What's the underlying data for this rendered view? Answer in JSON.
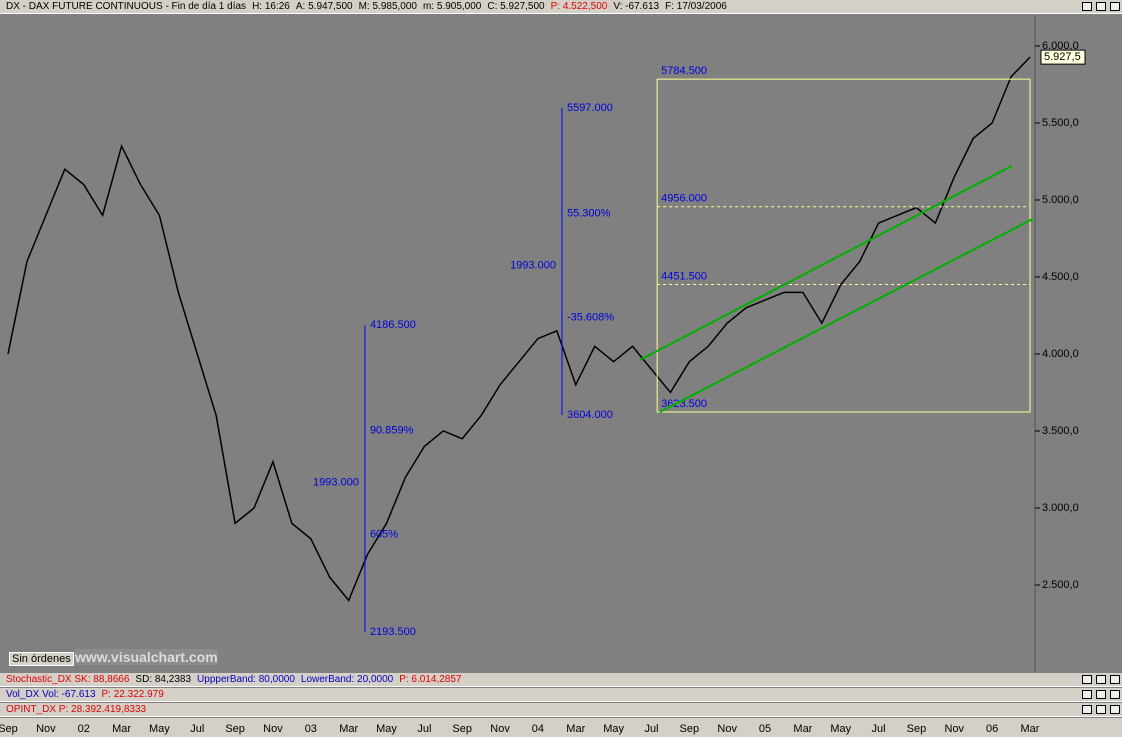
{
  "header": {
    "title": "DX - DAX FUTURE CONTINUOUS - Fin de día 1 días",
    "fields": [
      {
        "text": "H: 16:26",
        "color": "#000000"
      },
      {
        "text": "A: 5.947,500",
        "color": "#000000"
      },
      {
        "text": "M: 5.985,000",
        "color": "#000000"
      },
      {
        "text": "m: 5.905,000",
        "color": "#000000"
      },
      {
        "text": "C: 5.927,500",
        "color": "#000000"
      },
      {
        "text": "P: 4.522,500",
        "color": "#e00000"
      },
      {
        "text": "V: -67.613",
        "color": "#000000"
      },
      {
        "text": "F: 17/03/2006",
        "color": "#000000"
      }
    ]
  },
  "chart_data": {
    "type": "line",
    "categories": [
      "Sep",
      null,
      "Nov",
      null,
      "02",
      null,
      "Mar",
      null,
      "May",
      null,
      "Jul",
      null,
      "Sep",
      null,
      "Nov",
      null,
      "03",
      null,
      "Mar",
      null,
      "May",
      null,
      "Jul",
      null,
      "Sep",
      null,
      "Nov",
      null,
      "04",
      null,
      "Mar",
      null,
      "May",
      null,
      "Jul",
      null,
      "Sep",
      null,
      "Nov",
      null,
      "05",
      null,
      "Mar",
      null,
      "May",
      null,
      "Jul",
      null,
      "Sep",
      null,
      "Nov",
      null,
      "06",
      null,
      "Mar"
    ],
    "series": [
      {
        "name": "DX",
        "color": "#000000",
        "values": [
          4000,
          4600,
          4900,
          5200,
          5100,
          4900,
          5350,
          5100,
          4900,
          4400,
          4000,
          3600,
          2900,
          3000,
          3300,
          2900,
          2800,
          2550,
          2400,
          2700,
          2900,
          3200,
          3400,
          3500,
          3450,
          3600,
          3800,
          3950,
          4100,
          4150,
          3800,
          4050,
          3950,
          4050,
          3900,
          3750,
          3950,
          4050,
          4200,
          4300,
          4350,
          4400,
          4400,
          4200,
          4450,
          4600,
          4850,
          4900,
          4950,
          4850,
          5150,
          5400,
          5500,
          5800,
          5927.5
        ]
      }
    ],
    "ylim": [
      1935,
      6201
    ],
    "yticks": [
      {
        "value": 2500,
        "label": "2.500,0"
      },
      {
        "value": 3000,
        "label": "3.000,0"
      },
      {
        "value": 3500,
        "label": "3.500,0"
      },
      {
        "value": 4000,
        "label": "4.000,0"
      },
      {
        "value": 4500,
        "label": "4.500,0"
      },
      {
        "value": 5000,
        "label": "5.000,0"
      },
      {
        "value": 5500,
        "label": "5.500,0"
      },
      {
        "value": 6000,
        "label": "6.000,0"
      }
    ],
    "current": {
      "value": 5927.5,
      "label": "5.927,5"
    },
    "measures": [
      {
        "x": 18.86,
        "low": {
          "value": 2193.5,
          "label": "2193.500"
        },
        "high": {
          "value": 4186.5,
          "label": "4186.500"
        },
        "range": "1993.000",
        "pct": "90.859%",
        "pct2": "605%"
      },
      {
        "x": 29.27,
        "low": {
          "value": 3604,
          "label": "3604.000"
        },
        "high": {
          "value": 5597,
          "label": "5597.000"
        },
        "range": "1993.000",
        "pct": "55.300%",
        "pct2": "-35.608%"
      }
    ],
    "retracement": {
      "x_from": 34.3,
      "x_to": 54,
      "color": "#ffff99",
      "levels": [
        {
          "value": 5784.5,
          "label": "5784.500"
        },
        {
          "value": 4956,
          "label": "4956.000"
        },
        {
          "value": 4451.5,
          "label": "4451.500"
        },
        {
          "value": 3623.5,
          "label": "3623.500"
        }
      ]
    },
    "trendlines": [
      {
        "color": "#00b000",
        "x": [
          33.39,
          53.04
        ],
        "y": [
          3961,
          5221
        ]
      },
      {
        "color": "#00b000",
        "x": [
          34.44,
          54.15
        ],
        "y": [
          3623,
          4877
        ]
      }
    ]
  },
  "panes": [
    [
      {
        "text": "Stochastic_DX  SK: 88,8666",
        "color": "#e00000"
      },
      {
        "text": "SD: 84,2383",
        "color": "#000000"
      },
      {
        "text": "UppperBand: 80,0000",
        "color": "#0000c0"
      },
      {
        "text": "LowerBand: 20,0000",
        "color": "#0000c0"
      },
      {
        "text": "P: 6.014,2857",
        "color": "#e00000"
      }
    ],
    [
      {
        "text": "Vol_DX  Vol: -67.613",
        "color": "#0000c0"
      },
      {
        "text": "P: 22.322.979",
        "color": "#e00000"
      }
    ],
    [
      {
        "text": "OPINT_DX  P: 28.392.419,8333",
        "color": "#e00000"
      }
    ]
  ],
  "button": "Sin órdenes",
  "watermark": "www.visualchart.com"
}
